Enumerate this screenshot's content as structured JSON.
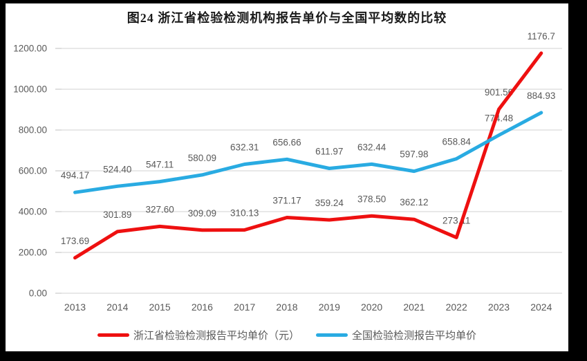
{
  "frame": {
    "background": "#000000",
    "card_background": "#ffffff"
  },
  "chart_data": {
    "type": "line",
    "title": "图24  浙江省检验检测机构报告单价与全国平均数的比较",
    "categories": [
      "2013",
      "2014",
      "2015",
      "2016",
      "2017",
      "2018",
      "2019",
      "2020",
      "2021",
      "2022",
      "2023",
      "2024"
    ],
    "series": [
      {
        "name": "浙江省检验检测报告平均单价（元）",
        "color": "#ee1010",
        "values": [
          173.69,
          301.89,
          327.6,
          309.09,
          310.13,
          371.17,
          359.24,
          378.5,
          362.12,
          273.11,
          901.56,
          1176.7
        ],
        "labels": [
          "173.69",
          "301.89",
          "327.60",
          "309.09",
          "310.13",
          "371.17",
          "359.24",
          "378.50",
          "362.12",
          "273.11",
          "901.56",
          "1176.7"
        ]
      },
      {
        "name": "全国检验检测报告平均单价",
        "color": "#29abe2",
        "values": [
          494.17,
          524.4,
          547.11,
          580.09,
          632.31,
          656.66,
          611.97,
          632.44,
          597.98,
          658.84,
          774.48,
          884.93
        ],
        "labels": [
          "494.17",
          "524.40",
          "547.11",
          "580.09",
          "632.31",
          "656.66",
          "611.97",
          "632.44",
          "597.98",
          "658.84",
          "774.48",
          "884.93"
        ]
      }
    ],
    "ylim": [
      0,
      1200
    ],
    "ytick_step": 200,
    "ytick_labels": [
      "0.00",
      "200.00",
      "400.00",
      "600.00",
      "800.00",
      "1000.00",
      "1200.00"
    ],
    "grid": true,
    "legend_position": "bottom",
    "colors": {
      "grid": "#d9d9d9",
      "tick": "#bfbfbf",
      "axis_text": "#595959",
      "data_label_text": "#595959"
    }
  }
}
